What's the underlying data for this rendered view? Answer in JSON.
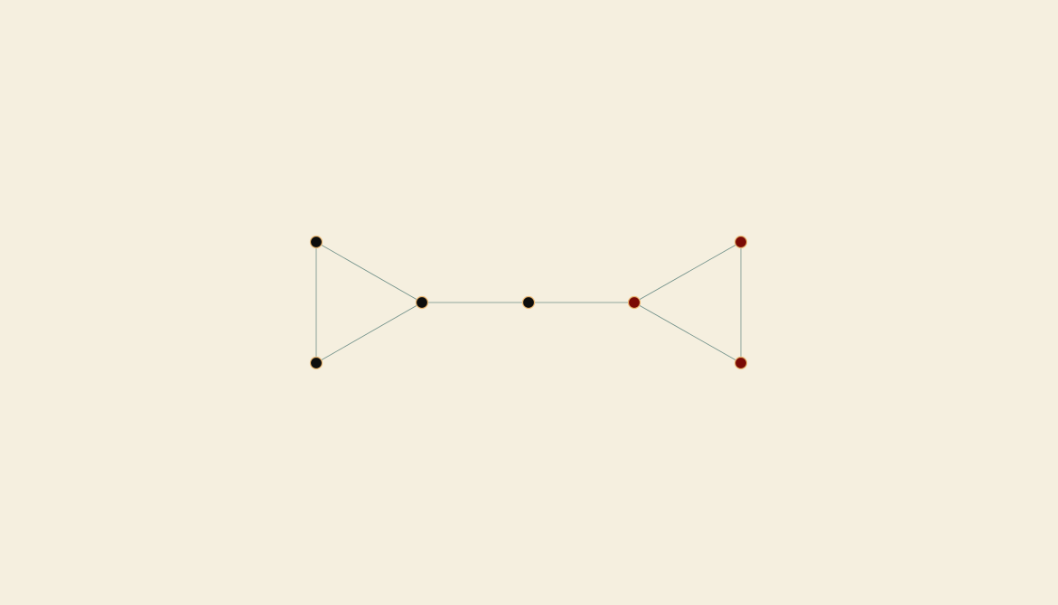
{
  "diagram": {
    "type": "graph",
    "colors": {
      "background": "#f5efdf",
      "edge": "#6f8f88",
      "node_stroke": "#e8b774",
      "group_a": "#0d0d0d",
      "group_b": "#7a0a05"
    },
    "nodes": [
      {
        "id": "a1",
        "group": "group_a"
      },
      {
        "id": "a2",
        "group": "group_a"
      },
      {
        "id": "a3",
        "group": "group_a"
      },
      {
        "id": "c",
        "group": "group_a"
      },
      {
        "id": "b3",
        "group": "group_b"
      },
      {
        "id": "b1",
        "group": "group_b"
      },
      {
        "id": "b2",
        "group": "group_b"
      }
    ],
    "edges": [
      [
        "a1",
        "a2"
      ],
      [
        "a1",
        "a3"
      ],
      [
        "a2",
        "a3"
      ],
      [
        "a3",
        "c"
      ],
      [
        "c",
        "b3"
      ],
      [
        "b3",
        "b1"
      ],
      [
        "b3",
        "b2"
      ],
      [
        "b1",
        "b2"
      ]
    ]
  }
}
